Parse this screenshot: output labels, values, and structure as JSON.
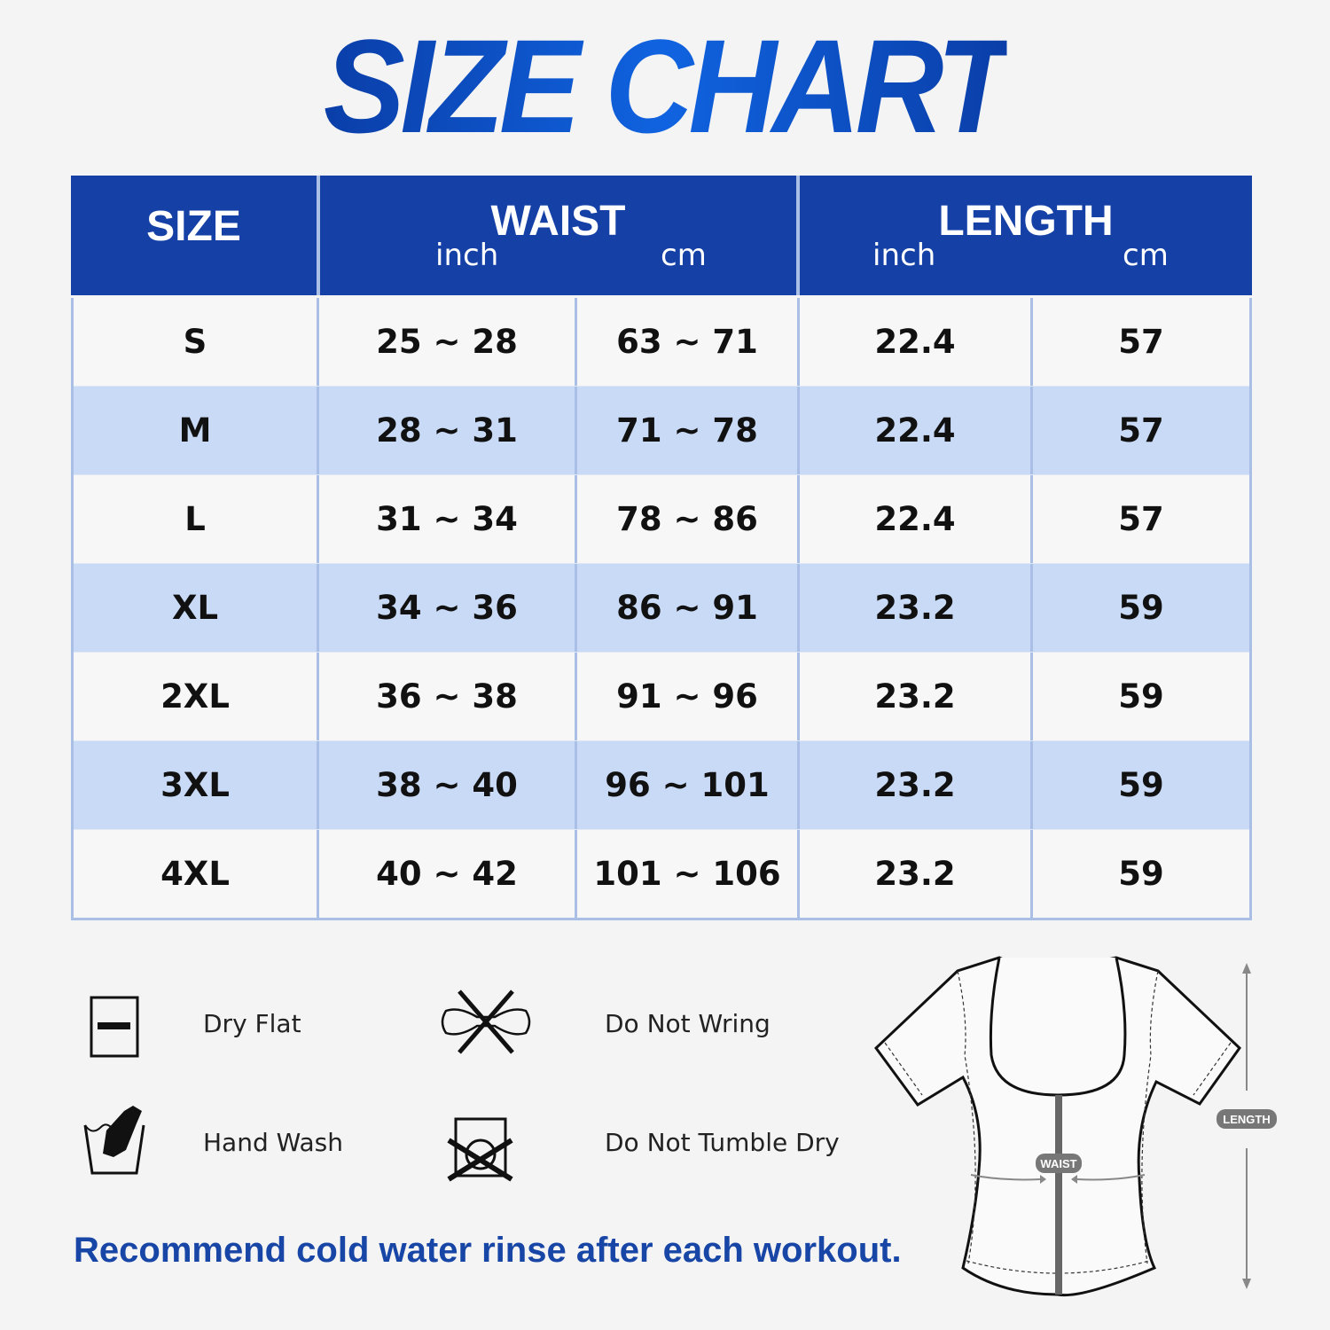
{
  "title": "SIZE CHART",
  "table": {
    "headers": {
      "size": "SIZE",
      "waist": "WAIST",
      "length": "LENGTH",
      "inch": "inch",
      "cm": "cm"
    },
    "rows": [
      [
        "S",
        "25 ~ 28",
        "63 ~ 71",
        "22.4",
        "57"
      ],
      [
        "M",
        "28 ~ 31",
        "71 ~ 78",
        "22.4",
        "57"
      ],
      [
        "L",
        "31 ~ 34",
        "78 ~ 86",
        "22.4",
        "57"
      ],
      [
        "XL",
        "34 ~ 36",
        "86 ~ 91",
        "23.2",
        "59"
      ],
      [
        "2XL",
        "36 ~ 38",
        "91 ~ 96",
        "23.2",
        "59"
      ],
      [
        "3XL",
        "38 ~ 40",
        "96 ~ 101",
        "23.2",
        "59"
      ],
      [
        "4XL",
        "40 ~ 42",
        "101 ~ 106",
        "23.2",
        "59"
      ]
    ]
  },
  "care": [
    {
      "icon": "dry-flat-icon",
      "label": "Dry Flat"
    },
    {
      "icon": "do-not-wring-icon",
      "label": "Do Not Wring"
    },
    {
      "icon": "hand-wash-icon",
      "label": "Hand Wash"
    },
    {
      "icon": "do-not-tumble-dry-icon",
      "label": "Do Not Tumble Dry"
    }
  ],
  "note": "Recommend cold water rinse after each workout.",
  "diagram": {
    "waist_tag": "WAIST",
    "length_tag": "LENGTH"
  },
  "colors": {
    "header": "#1541a6",
    "alt_row": "#c9daf6",
    "title": "#0c52c8",
    "note": "#1846a6"
  }
}
